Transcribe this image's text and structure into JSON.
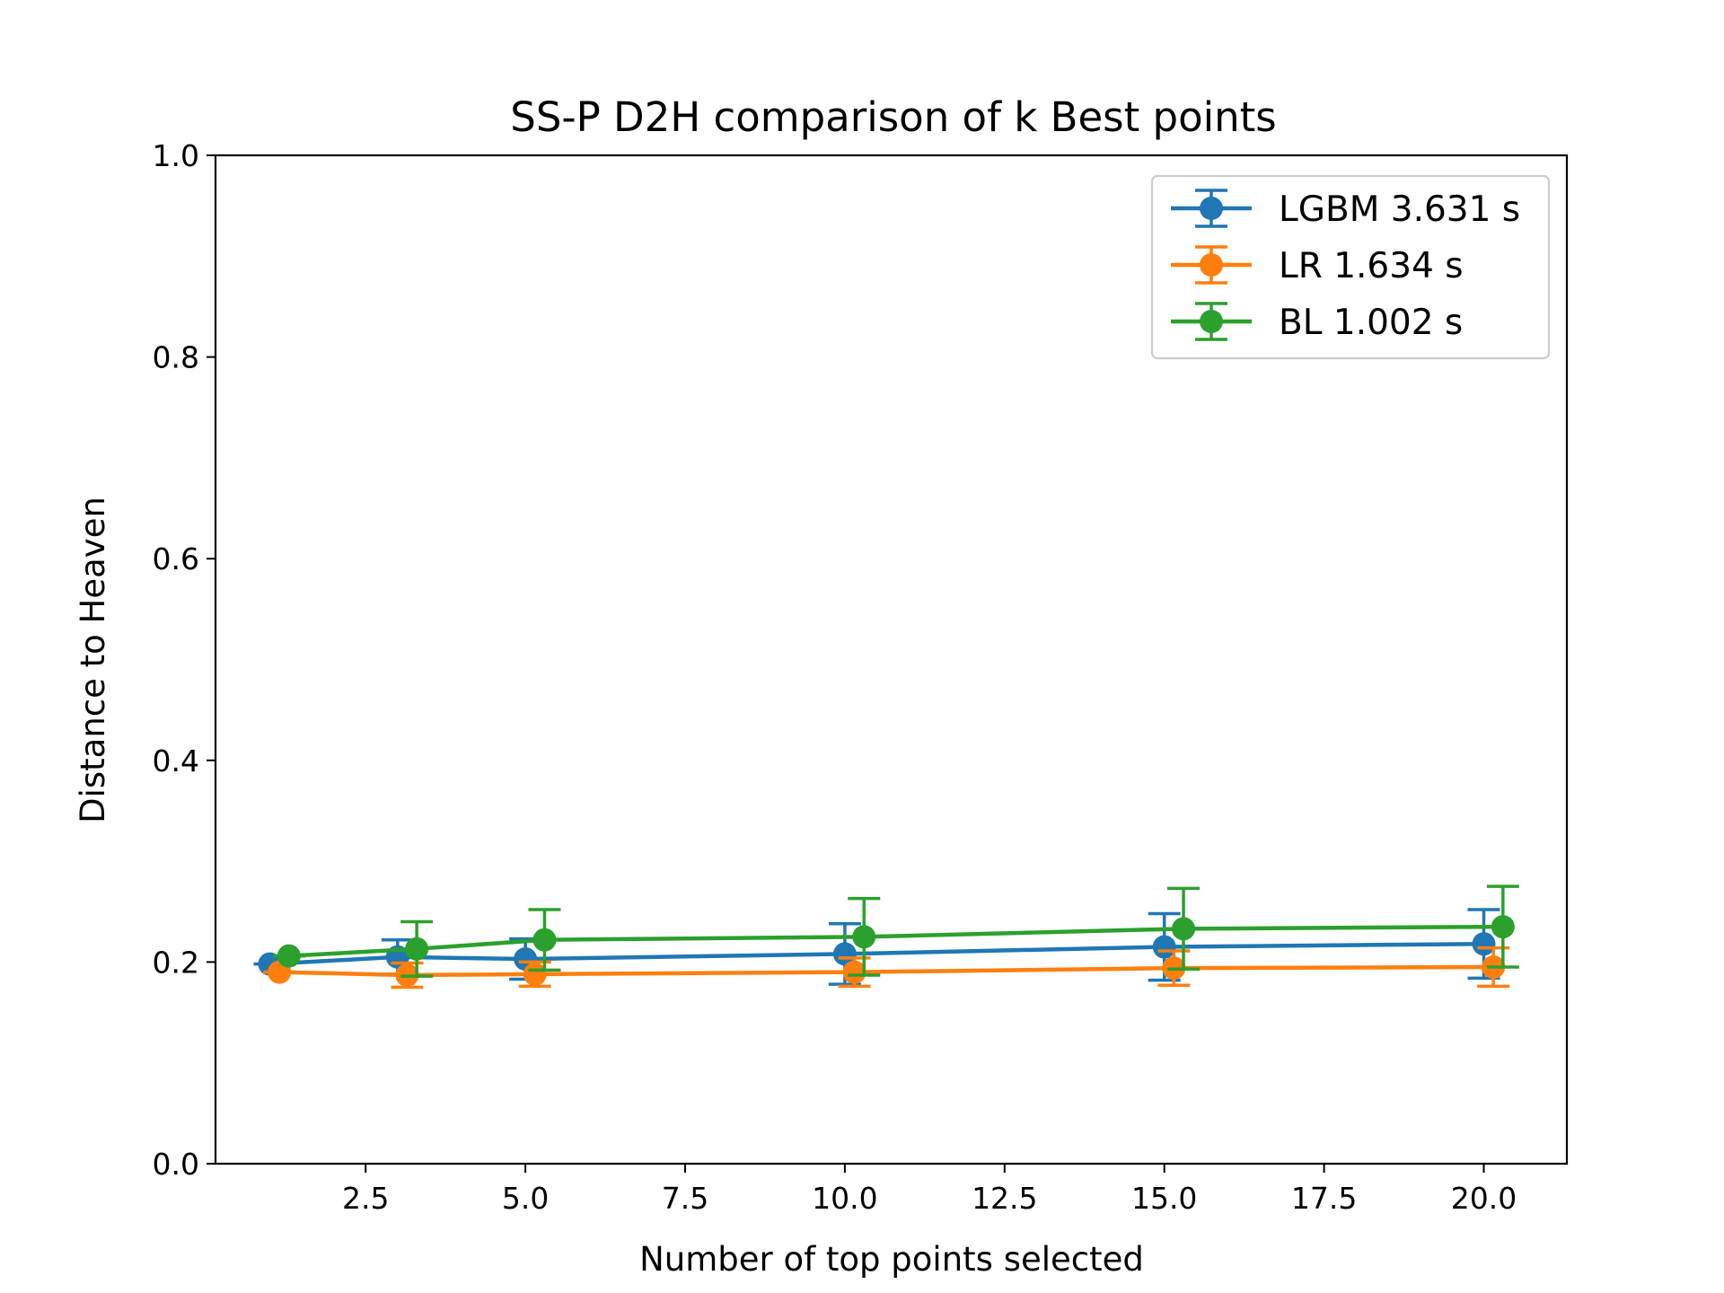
{
  "chart_data": {
    "type": "line",
    "title": "SS-P D2H comparison of k Best points",
    "xlabel": "Number of top points selected",
    "ylabel": "Distance to Heaven",
    "xlim": [
      0.15,
      21.3
    ],
    "ylim": [
      0.0,
      1.0
    ],
    "x_ticks": [
      "2.5",
      "5.0",
      "7.5",
      "10.0",
      "12.5",
      "15.0",
      "17.5",
      "20.0"
    ],
    "y_ticks": [
      "0.0",
      "0.2",
      "0.4",
      "0.6",
      "0.8",
      "1.0"
    ],
    "legend_position": "top-right",
    "grid": false,
    "error_bars": true,
    "series": [
      {
        "name": "LGBM 3.631 s",
        "color": "#1f77b4",
        "x": [
          1.0,
          3.0,
          5.0,
          10.0,
          15.0,
          20.0
        ],
        "y": [
          0.198,
          0.205,
          0.203,
          0.208,
          0.215,
          0.218
        ],
        "err": [
          0.0,
          0.017,
          0.02,
          0.03,
          0.033,
          0.034
        ]
      },
      {
        "name": "LR 1.634 s",
        "color": "#ff7f0e",
        "x": [
          1.15,
          3.15,
          5.15,
          10.15,
          15.15,
          20.15
        ],
        "y": [
          0.19,
          0.187,
          0.188,
          0.19,
          0.194,
          0.195
        ],
        "err": [
          0.0,
          0.012,
          0.012,
          0.014,
          0.017,
          0.019
        ]
      },
      {
        "name": "BL 1.002 s",
        "color": "#2ca02c",
        "x": [
          1.3,
          3.3,
          5.3,
          10.3,
          15.3,
          20.3
        ],
        "y": [
          0.206,
          0.213,
          0.222,
          0.225,
          0.233,
          0.235
        ],
        "err": [
          0.0,
          0.027,
          0.03,
          0.038,
          0.04,
          0.04
        ]
      }
    ]
  }
}
